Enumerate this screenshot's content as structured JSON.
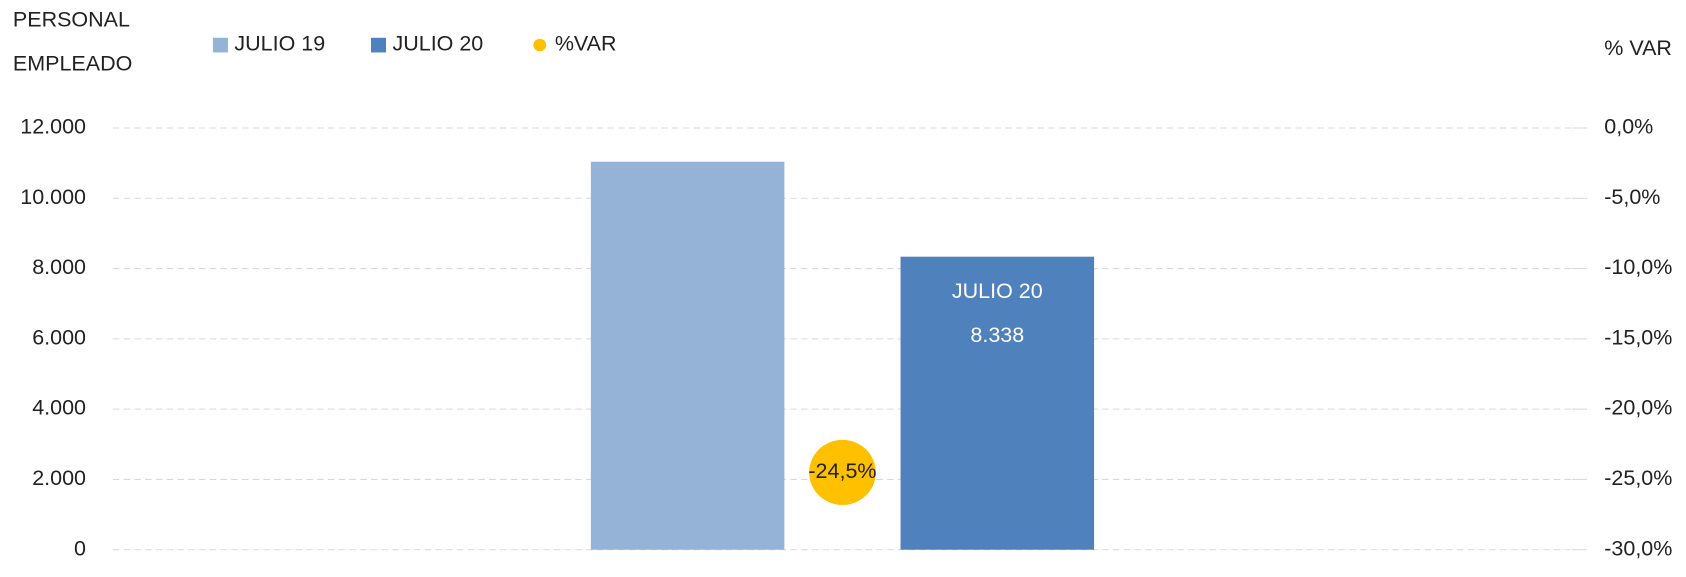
{
  "chart_data": {
    "type": "bar",
    "ylabel": [
      "PERSONAL",
      "EMPLEADO"
    ],
    "y2label": "% VAR",
    "categories": [
      null
    ],
    "series": [
      {
        "name": "JULIO 19",
        "color": "#95b3d7",
        "values": [
          11040
        ]
      },
      {
        "name": "JULIO 20",
        "color": "#4f81bd",
        "values": [
          8338
        ],
        "value_labels": [
          "8.338"
        ]
      },
      {
        "name": "%VAR",
        "type": "scatter",
        "axis": "y2",
        "color": "#ffc000",
        "values": [
          -24.5
        ],
        "value_labels": [
          "-24,5%"
        ]
      }
    ],
    "ylim": [
      0,
      12000
    ],
    "yticks": [
      0,
      {
        "value": 2000,
        "label": "2.000"
      },
      {
        "value": 4000,
        "label": "4.000"
      },
      {
        "value": 6000,
        "label": "6.000"
      },
      {
        "value": 8000,
        "label": "8.000"
      },
      {
        "value": 10000,
        "label": "10.000"
      },
      {
        "value": 12000,
        "label": "12.000"
      }
    ],
    "y2lim": [
      -30,
      0
    ],
    "y2ticks": [
      {
        "value": -30,
        "label": "-30,0%"
      },
      {
        "value": -25,
        "label": "-25,0%"
      },
      {
        "value": -20,
        "label": "-20,0%"
      },
      {
        "value": -15,
        "label": "-15,0%"
      },
      {
        "value": -10,
        "label": "-10,0%"
      },
      {
        "value": -5,
        "label": "-5,0%"
      },
      {
        "value": 0,
        "label": "0,0%"
      }
    ],
    "grid": true,
    "legend": "top"
  }
}
